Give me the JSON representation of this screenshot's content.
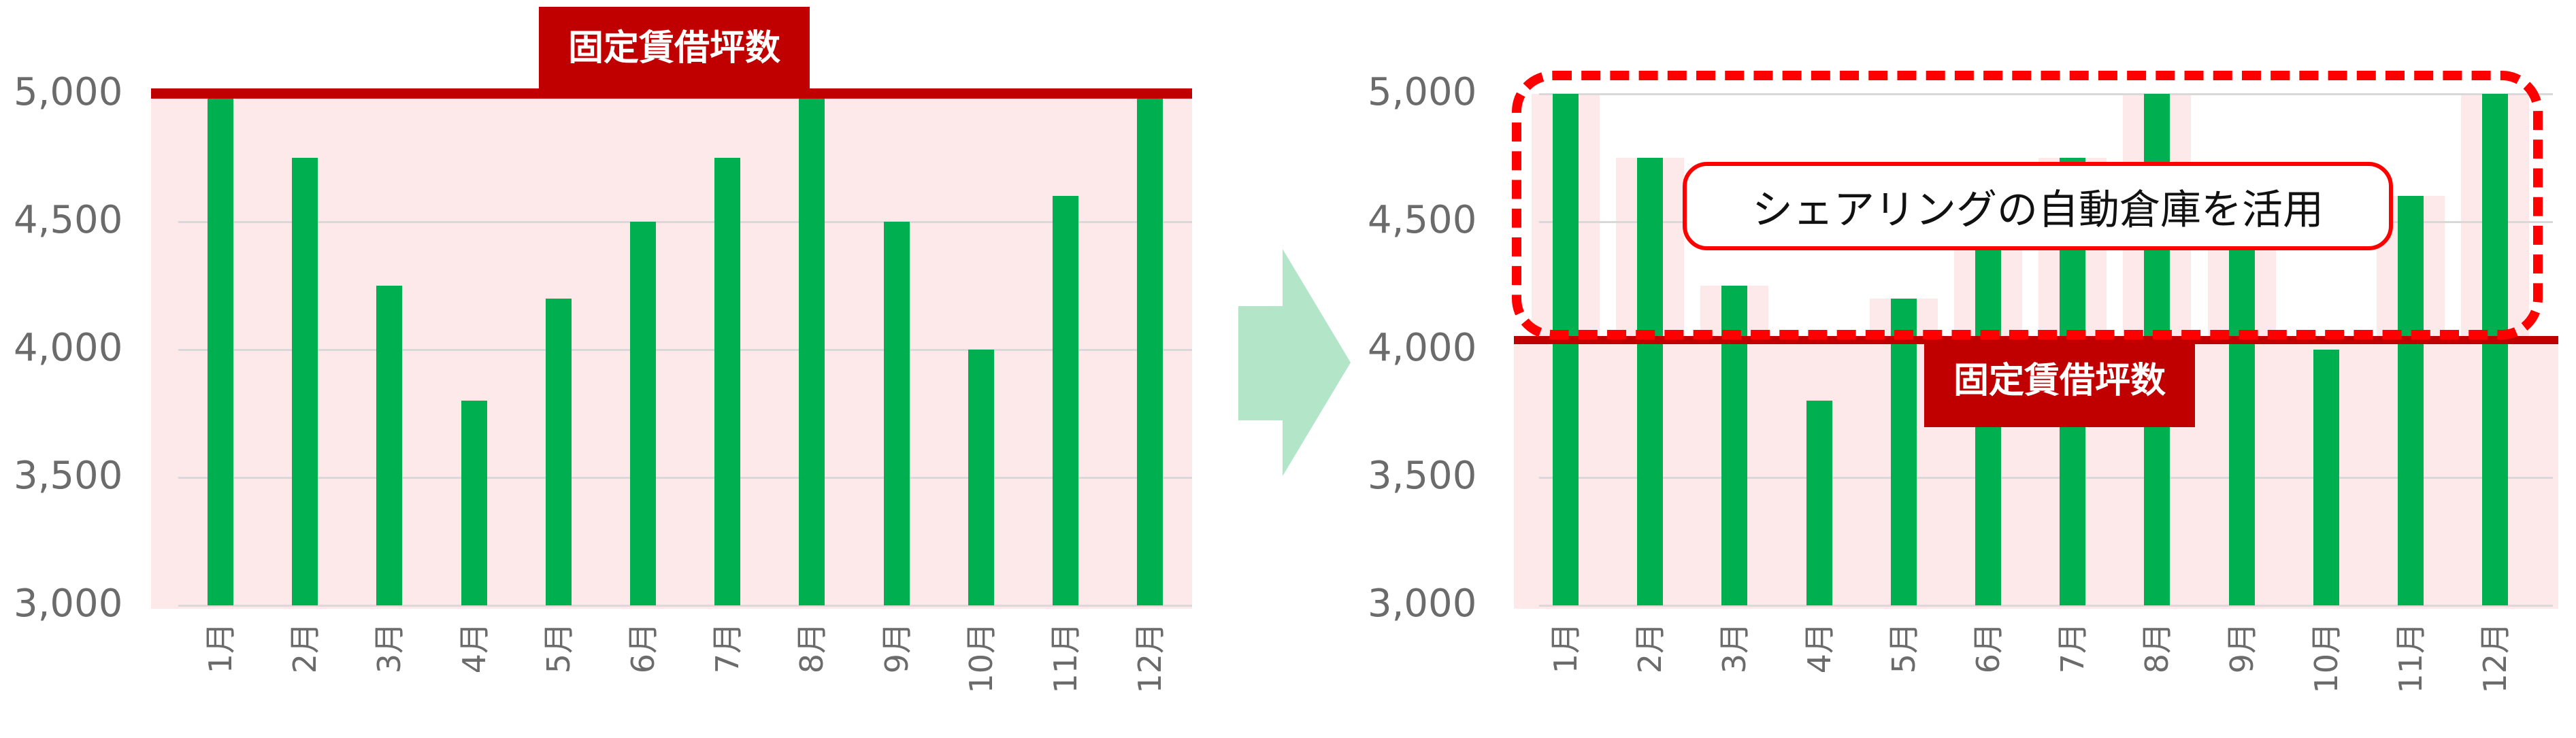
{
  "chart_data": [
    {
      "type": "bar",
      "title": "",
      "annotation": "固定賃借坪数",
      "categories": [
        "1月",
        "2月",
        "3月",
        "4月",
        "5月",
        "6月",
        "7月",
        "8月",
        "9月",
        "10月",
        "11月",
        "12月"
      ],
      "values": [
        5000,
        4750,
        4250,
        3800,
        4200,
        4500,
        4750,
        5000,
        4500,
        4000,
        4600,
        5000
      ],
      "reference_line": {
        "label": "固定賃借坪数",
        "value": 5000
      },
      "ylim": [
        3000,
        5000
      ],
      "yticks": [
        "3,000",
        "3,500",
        "4,000",
        "4,500",
        "5,000"
      ],
      "xlabel": "",
      "ylabel": "",
      "grid": true,
      "legend": "none"
    },
    {
      "type": "bar",
      "title": "",
      "annotation": "シェアリングの自動倉庫を活用",
      "categories": [
        "1月",
        "2月",
        "3月",
        "4月",
        "5月",
        "6月",
        "7月",
        "8月",
        "9月",
        "10月",
        "11月",
        "12月"
      ],
      "values": [
        5000,
        4750,
        4250,
        3800,
        4200,
        4500,
        4750,
        5000,
        4500,
        4000,
        4600,
        5000
      ],
      "reference_line": {
        "label": "固定賃借坪数",
        "value": 4000
      },
      "ylim": [
        3000,
        5000
      ],
      "yticks": [
        "3,000",
        "3,500",
        "4,000",
        "4,500",
        "5,000"
      ],
      "xlabel": "",
      "ylabel": "",
      "grid": true,
      "legend": "none"
    }
  ],
  "left_chart": {
    "limit_label": "固定賃借坪数",
    "yticks": [
      "5,000",
      "4,500",
      "4,000",
      "3,500",
      "3,000"
    ],
    "months": [
      "1月",
      "2月",
      "3月",
      "4月",
      "5月",
      "6月",
      "7月",
      "8月",
      "9月",
      "10月",
      "11月",
      "12月"
    ]
  },
  "right_chart": {
    "limit_label": "固定賃借坪数",
    "callout": "シェアリングの自動倉庫を活用",
    "yticks": [
      "5,000",
      "4,500",
      "4,000",
      "3,500",
      "3,000"
    ],
    "months": [
      "1月",
      "2月",
      "3月",
      "4月",
      "5月",
      "6月",
      "7月",
      "8月",
      "9月",
      "10月",
      "11月",
      "12月"
    ]
  },
  "arrow": {
    "icon": "right-arrow-icon",
    "color": "#b3e6c9"
  },
  "colors": {
    "bar": "#00b050",
    "limit": "#c00000",
    "plot_bg": "#fde9e9",
    "dashed": "#ff0000",
    "grid": "#d9d9d9"
  }
}
